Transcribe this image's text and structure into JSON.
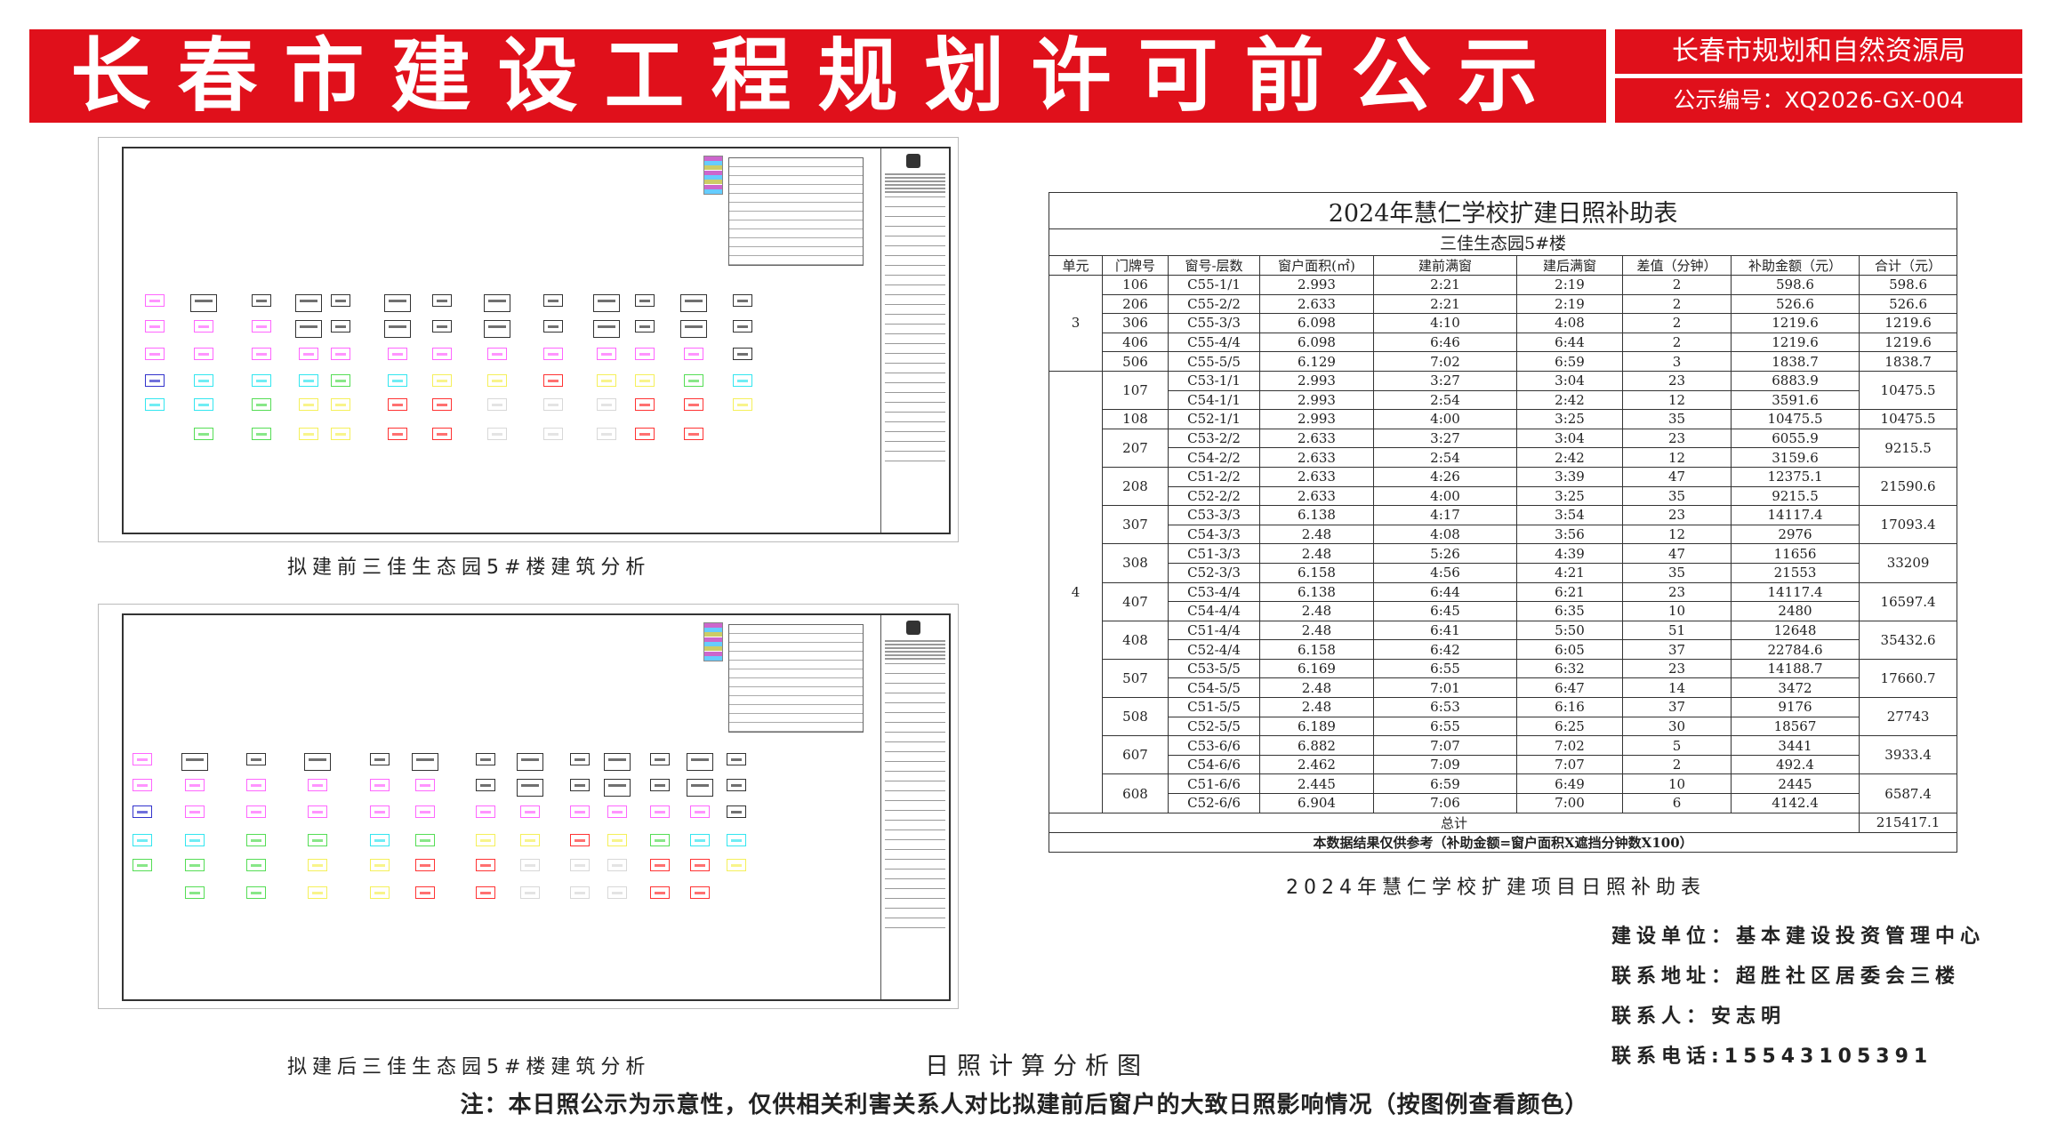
{
  "header": {
    "title": "长春市建设工程规划许可前公示",
    "office": "长春市规划和自然资源局",
    "notice_number": "公示编号：XQ2026-GX-004"
  },
  "colors": {
    "banner": "#e0101b",
    "m": "#ff66ff",
    "k": "#333333",
    "c": "#33e6f0",
    "b": "#3333cc",
    "g": "#55dd55",
    "y": "#f5f05a",
    "r": "#ff3333",
    "w": "#d8d8d8"
  },
  "drawings": [
    {
      "caption": "拟建前三佳生态园5#楼建筑分析",
      "grid": [
        "mkkkkkkkkkkkk",
        "mmmkkkkkkkkkk",
        "mmmmmmmmmmmmk",
        "bcccgcyyryygc",
        "ccgyyrrwwwrry",
        ".ggyyrrwwwrr."
      ]
    },
    {
      "caption": "拟建后三佳生态园5#楼建筑分析",
      "grid": [
        "mkkkkkkkkkkkk",
        "mmmmmmkkkkkkk",
        "bmmmmmmmmmmmk",
        "ccggcgyyrygcc",
        "gggyyrrwwwrry",
        ".ggyyrrwwwrr."
      ]
    }
  ],
  "center_caption": "日照计算分析图",
  "table": {
    "title": "2024年慧仁学校扩建日照补助表",
    "subtitle": "三佳生态园5#楼",
    "columns": [
      "单元",
      "门牌号",
      "窗号-层数",
      "窗户面积(㎡)",
      "建前满窗",
      "建后满窗",
      "差值（分钟）",
      "补助金额（元）",
      "合计（元）"
    ],
    "units": [
      {
        "unit": "3",
        "doors": [
          {
            "door": "106",
            "total": "598.6",
            "windows": [
              [
                "C55-1/1",
                "2.993",
                "2:21",
                "2:19",
                "2",
                "598.6"
              ]
            ]
          },
          {
            "door": "206",
            "total": "526.6",
            "windows": [
              [
                "C55-2/2",
                "2.633",
                "2:21",
                "2:19",
                "2",
                "526.6"
              ]
            ]
          },
          {
            "door": "306",
            "total": "1219.6",
            "windows": [
              [
                "C55-3/3",
                "6.098",
                "4:10",
                "4:08",
                "2",
                "1219.6"
              ]
            ]
          },
          {
            "door": "406",
            "total": "1219.6",
            "windows": [
              [
                "C55-4/4",
                "6.098",
                "6:46",
                "6:44",
                "2",
                "1219.6"
              ]
            ]
          },
          {
            "door": "506",
            "total": "1838.7",
            "windows": [
              [
                "C55-5/5",
                "6.129",
                "7:02",
                "6:59",
                "3",
                "1838.7"
              ]
            ]
          }
        ]
      },
      {
        "unit": "4",
        "doors": [
          {
            "door": "107",
            "total": "10475.5",
            "windows": [
              [
                "C53-1/1",
                "2.993",
                "3:27",
                "3:04",
                "23",
                "6883.9"
              ],
              [
                "C54-1/1",
                "2.993",
                "2:54",
                "2:42",
                "12",
                "3591.6"
              ]
            ]
          },
          {
            "door": "108",
            "total": "10475.5",
            "windows": [
              [
                "C52-1/1",
                "2.993",
                "4:00",
                "3:25",
                "35",
                "10475.5"
              ]
            ]
          },
          {
            "door": "207",
            "total": "9215.5",
            "windows": [
              [
                "C53-2/2",
                "2.633",
                "3:27",
                "3:04",
                "23",
                "6055.9"
              ],
              [
                "C54-2/2",
                "2.633",
                "2:54",
                "2:42",
                "12",
                "3159.6"
              ]
            ]
          },
          {
            "door": "208",
            "total": "21590.6",
            "windows": [
              [
                "C51-2/2",
                "2.633",
                "4:26",
                "3:39",
                "47",
                "12375.1"
              ],
              [
                "C52-2/2",
                "2.633",
                "4:00",
                "3:25",
                "35",
                "9215.5"
              ]
            ]
          },
          {
            "door": "307",
            "total": "17093.4",
            "windows": [
              [
                "C53-3/3",
                "6.138",
                "4:17",
                "3:54",
                "23",
                "14117.4"
              ],
              [
                "C54-3/3",
                "2.48",
                "4:08",
                "3:56",
                "12",
                "2976"
              ]
            ]
          },
          {
            "door": "308",
            "total": "33209",
            "windows": [
              [
                "C51-3/3",
                "2.48",
                "5:26",
                "4:39",
                "47",
                "11656"
              ],
              [
                "C52-3/3",
                "6.158",
                "4:56",
                "4:21",
                "35",
                "21553"
              ]
            ]
          },
          {
            "door": "407",
            "total": "16597.4",
            "windows": [
              [
                "C53-4/4",
                "6.138",
                "6:44",
                "6:21",
                "23",
                "14117.4"
              ],
              [
                "C54-4/4",
                "2.48",
                "6:45",
                "6:35",
                "10",
                "2480"
              ]
            ]
          },
          {
            "door": "408",
            "total": "35432.6",
            "windows": [
              [
                "C51-4/4",
                "2.48",
                "6:41",
                "5:50",
                "51",
                "12648"
              ],
              [
                "C52-4/4",
                "6.158",
                "6:42",
                "6:05",
                "37",
                "22784.6"
              ]
            ]
          },
          {
            "door": "507",
            "total": "17660.7",
            "windows": [
              [
                "C53-5/5",
                "6.169",
                "6:55",
                "6:32",
                "23",
                "14188.7"
              ],
              [
                "C54-5/5",
                "2.48",
                "7:01",
                "6:47",
                "14",
                "3472"
              ]
            ]
          },
          {
            "door": "508",
            "total": "27743",
            "windows": [
              [
                "C51-5/5",
                "2.48",
                "6:53",
                "6:16",
                "37",
                "9176"
              ],
              [
                "C52-5/5",
                "6.189",
                "6:55",
                "6:25",
                "30",
                "18567"
              ]
            ]
          },
          {
            "door": "607",
            "total": "3933.4",
            "windows": [
              [
                "C53-6/6",
                "6.882",
                "7:07",
                "7:02",
                "5",
                "3441"
              ],
              [
                "C54-6/6",
                "2.462",
                "7:09",
                "7:07",
                "2",
                "492.4"
              ]
            ]
          },
          {
            "door": "608",
            "total": "6587.4",
            "windows": [
              [
                "C51-6/6",
                "2.445",
                "6:59",
                "6:49",
                "10",
                "2445"
              ],
              [
                "C52-6/6",
                "6.904",
                "7:06",
                "7:00",
                "6",
                "4142.4"
              ]
            ]
          }
        ]
      }
    ],
    "total_label": "总计",
    "grand_total": "215417.1",
    "footnote": "本数据结果仅供参考（补助金额=窗户面积X遮挡分钟数X100）",
    "caption": "2024年慧仁学校扩建项目日照补助表"
  },
  "info": {
    "builder": "建设单位：基本建设投资管理中心",
    "address": "联系地址：超胜社区居委会三楼",
    "contact": "联系人：安志明",
    "phone": "联系电话:15543105391"
  },
  "note": "注：本日照公示为示意性，仅供相关利害关系人对比拟建前后窗户的大致日照影响情况（按图例查看颜色）"
}
